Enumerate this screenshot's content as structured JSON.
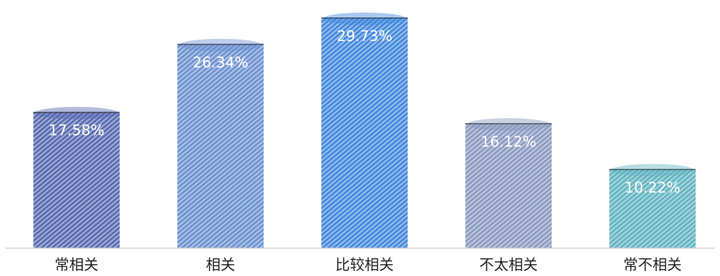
{
  "chart_data": {
    "type": "bar",
    "title": "",
    "xlabel": "",
    "ylabel": "",
    "categories": [
      "常相关",
      "相关",
      "比较相关",
      "不太相关",
      "常不相关"
    ],
    "values": [
      17.58,
      26.34,
      29.73,
      16.12,
      10.22
    ],
    "value_labels": [
      "17.58%",
      "26.34%",
      "29.73%",
      "16.12%",
      "10.22%"
    ],
    "unit": "%",
    "ylim": [
      0,
      30
    ],
    "grid": false,
    "legend": "none",
    "colors": [
      "#5468b0",
      "#6a90d0",
      "#3f86dd",
      "#8898bf",
      "#5fb3c0"
    ]
  }
}
